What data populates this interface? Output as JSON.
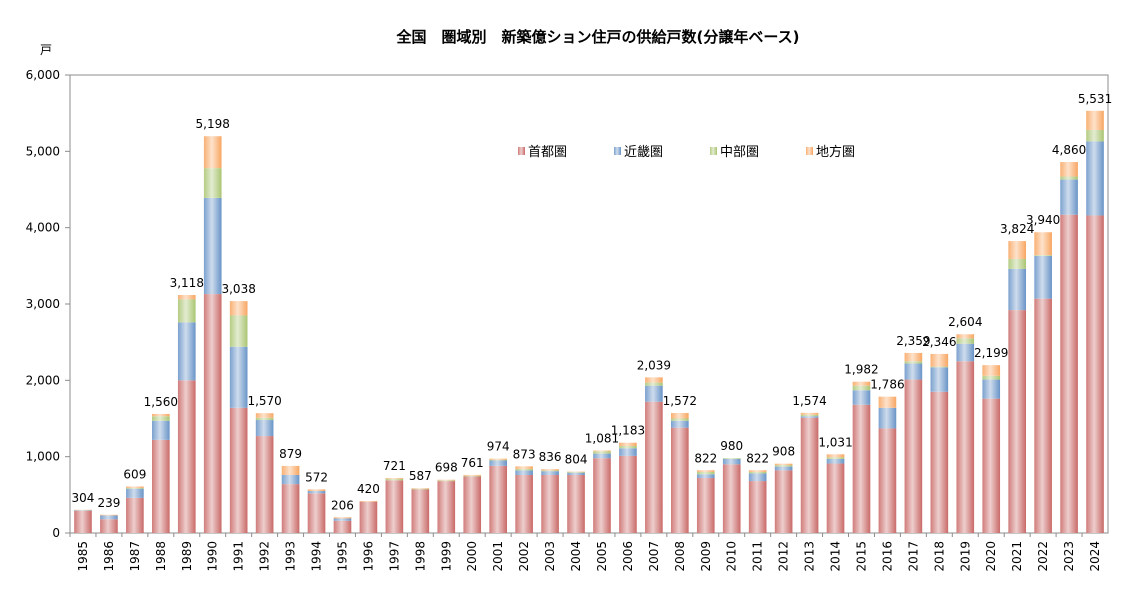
{
  "chart_data": {
    "type": "bar",
    "stacked": true,
    "title": "全国　圏域別　新築億ション住戸の供給戸数(分譲年ベース)",
    "y_unit_label": "戸",
    "ylim": [
      0,
      6000
    ],
    "yticks": [
      0,
      1000,
      2000,
      3000,
      4000,
      5000,
      6000
    ],
    "ytick_labels": [
      "0",
      "1,000",
      "2,000",
      "3,000",
      "4,000",
      "5,000",
      "6,000"
    ],
    "grid": false,
    "legend_position": "top-center",
    "categories": [
      "1985",
      "1986",
      "1987",
      "1988",
      "1989",
      "1990",
      "1991",
      "1992",
      "1993",
      "1994",
      "1995",
      "1996",
      "1997",
      "1998",
      "1999",
      "2000",
      "2001",
      "2002",
      "2003",
      "2004",
      "2005",
      "2006",
      "2007",
      "2008",
      "2009",
      "2010",
      "2011",
      "2012",
      "2013",
      "2014",
      "2015",
      "2016",
      "2017",
      "2018",
      "2019",
      "2020",
      "2021",
      "2022",
      "2023",
      "2024"
    ],
    "series": [
      {
        "name": "首都圏",
        "color": "#c0504d",
        "values": [
          290,
          180,
          460,
          1220,
          2000,
          3130,
          1640,
          1270,
          640,
          520,
          160,
          410,
          690,
          570,
          680,
          740,
          880,
          760,
          760,
          760,
          980,
          1010,
          1720,
          1380,
          720,
          900,
          680,
          820,
          1510,
          910,
          1680,
          1370,
          2010,
          1850,
          2250,
          1760,
          2920,
          3070,
          4170,
          4160
        ]
      },
      {
        "name": "近畿圏",
        "color": "#4f81bd",
        "values": [
          10,
          50,
          120,
          250,
          760,
          1260,
          800,
          210,
          120,
          30,
          30,
          0,
          0,
          0,
          0,
          0,
          70,
          60,
          50,
          30,
          60,
          100,
          210,
          90,
          50,
          70,
          100,
          50,
          20,
          60,
          190,
          270,
          210,
          320,
          230,
          250,
          540,
          560,
          460,
          970
        ]
      },
      {
        "name": "中部圏",
        "color": "#9bbb59",
        "values": [
          0,
          0,
          10,
          60,
          300,
          390,
          410,
          30,
          0,
          0,
          0,
          0,
          20,
          10,
          10,
          10,
          10,
          20,
          10,
          10,
          30,
          30,
          40,
          30,
          30,
          10,
          20,
          20,
          20,
          20,
          60,
          0,
          30,
          10,
          70,
          50,
          130,
          10,
          40,
          150
        ]
      },
      {
        "name": "地方圏",
        "color": "#f79646",
        "values": [
          4,
          9,
          19,
          30,
          58,
          418,
          188,
          60,
          119,
          22,
          16,
          10,
          11,
          7,
          8,
          11,
          14,
          33,
          16,
          4,
          11,
          43,
          69,
          72,
          22,
          0,
          22,
          18,
          24,
          41,
          52,
          146,
          109,
          166,
          54,
          139,
          234,
          300,
          190,
          251
        ]
      }
    ],
    "totals": [
      304,
      239,
      609,
      1560,
      3118,
      5198,
      3038,
      1570,
      879,
      572,
      206,
      420,
      721,
      587,
      698,
      761,
      974,
      873,
      836,
      804,
      1081,
      1183,
      2039,
      1572,
      822,
      980,
      822,
      908,
      1574,
      1031,
      1982,
      1786,
      2359,
      2346,
      2604,
      2199,
      3824,
      3940,
      4860,
      5531
    ],
    "total_labels": [
      "304",
      "239",
      "609",
      "1,560",
      "3,118",
      "5,198",
      "3,038",
      "1,570",
      "879",
      "572",
      "206",
      "420",
      "721",
      "587",
      "698",
      "761",
      "974",
      "873",
      "836",
      "804",
      "1,081",
      "1,183",
      "2,039",
      "1,572",
      "822",
      "980",
      "822",
      "908",
      "1,574",
      "1,031",
      "1,982",
      "1,786",
      "2,359",
      "2,346",
      "2,604",
      "2,199",
      "3,824",
      "3,940",
      "4,860",
      "5,531"
    ]
  }
}
